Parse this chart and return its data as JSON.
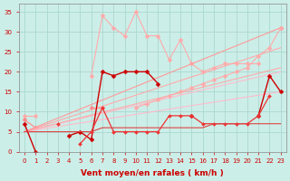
{
  "title": "",
  "xlabel": "Vent moyen/en rafales ( km/h )",
  "ylabel": "",
  "xlim": [
    -0.5,
    23.5
  ],
  "ylim": [
    0,
    37
  ],
  "bg_color": "#cceee8",
  "grid_color": "#aad8d0",
  "series": [
    {
      "x": [
        0,
        1,
        2,
        3,
        4,
        5,
        6,
        7,
        8,
        9,
        10,
        11,
        12,
        13,
        14,
        15,
        16,
        17,
        18,
        19,
        20,
        21,
        22,
        23
      ],
      "y": [
        9,
        9,
        null,
        null,
        null,
        null,
        19,
        34,
        31,
        29,
        35,
        29,
        29,
        23,
        28,
        22,
        20,
        21,
        22,
        22,
        22,
        22,
        null,
        null
      ],
      "color": "#ffaaaa",
      "lw": 0.8,
      "ms": 2.5,
      "marker": "D",
      "ls": "-"
    },
    {
      "x": [
        0,
        1,
        2,
        3,
        4,
        5,
        6,
        7,
        8,
        9,
        10,
        11,
        12,
        13,
        14,
        15,
        16,
        17,
        18,
        19,
        20,
        21,
        22,
        23
      ],
      "y": [
        8,
        6,
        null,
        null,
        null,
        null,
        11,
        11,
        null,
        null,
        null,
        null,
        null,
        null,
        null,
        null,
        null,
        null,
        null,
        null,
        null,
        null,
        null,
        31
      ],
      "color": "#ff8888",
      "lw": 0.8,
      "ms": 2.5,
      "marker": "D",
      "ls": "-"
    },
    {
      "x": [
        0,
        23
      ],
      "y": [
        5,
        20
      ],
      "color": "#ffbbcc",
      "lw": 0.8,
      "ms": 0,
      "marker": "None",
      "ls": "-"
    },
    {
      "x": [
        0,
        23
      ],
      "y": [
        5,
        15
      ],
      "color": "#ffbbcc",
      "lw": 0.8,
      "ms": 0,
      "marker": "None",
      "ls": "-"
    },
    {
      "x": [
        0,
        23
      ],
      "y": [
        5,
        21
      ],
      "color": "#ffaaaa",
      "lw": 0.8,
      "ms": 0,
      "marker": "None",
      "ls": "-"
    },
    {
      "x": [
        0,
        23
      ],
      "y": [
        5,
        26
      ],
      "color": "#ffaaaa",
      "lw": 0.8,
      "ms": 0,
      "marker": "None",
      "ls": "-"
    },
    {
      "x": [
        0,
        23
      ],
      "y": [
        5,
        31
      ],
      "color": "#ff9999",
      "lw": 0.8,
      "ms": 0,
      "marker": "None",
      "ls": "-"
    },
    {
      "x": [
        0,
        1,
        2,
        3,
        4,
        5,
        6,
        7,
        8,
        9,
        10,
        11,
        12,
        13,
        14,
        15,
        16,
        17,
        18,
        19,
        20,
        21,
        22,
        23
      ],
      "y": [
        7,
        0,
        null,
        null,
        4,
        5,
        3,
        20,
        19,
        20,
        20,
        20,
        17,
        null,
        null,
        9,
        null,
        null,
        null,
        null,
        null,
        9,
        19,
        15
      ],
      "color": "#cc0000",
      "lw": 1.0,
      "ms": 2.5,
      "marker": "D",
      "ls": "-"
    },
    {
      "x": [
        0,
        1,
        2,
        3,
        4,
        5,
        6,
        7,
        8,
        9,
        10,
        11,
        12,
        13,
        14,
        15,
        16,
        17,
        18,
        19,
        20,
        21,
        22,
        23
      ],
      "y": [
        null,
        null,
        null,
        7,
        null,
        2,
        5,
        11,
        5,
        5,
        5,
        5,
        5,
        9,
        9,
        9,
        7,
        7,
        7,
        7,
        7,
        9,
        14,
        null
      ],
      "color": "#ee3333",
      "lw": 0.9,
      "ms": 2,
      "marker": "D",
      "ls": "-"
    },
    {
      "x": [
        0,
        1,
        2,
        3,
        4,
        5,
        6,
        7,
        8,
        9,
        10,
        11,
        12,
        13,
        14,
        15,
        16,
        17,
        18,
        19,
        20,
        21,
        22,
        23
      ],
      "y": [
        5,
        5,
        5,
        5,
        5,
        5,
        5,
        6,
        6,
        6,
        6,
        6,
        6,
        6,
        6,
        6,
        6,
        7,
        7,
        7,
        7,
        7,
        7,
        7
      ],
      "color": "#dd4444",
      "lw": 0.8,
      "ms": 0,
      "marker": "None",
      "ls": "-"
    },
    {
      "x": [
        10,
        11,
        12,
        13,
        14,
        15,
        16,
        17,
        18,
        19,
        20,
        21,
        22,
        23
      ],
      "y": [
        11,
        12,
        13,
        14,
        15,
        16,
        17,
        18,
        19,
        20,
        21,
        24,
        26,
        31
      ],
      "color": "#ffaaaa",
      "lw": 0.8,
      "ms": 2.5,
      "marker": "D",
      "ls": "-"
    }
  ],
  "xticks": [
    0,
    1,
    2,
    3,
    4,
    5,
    6,
    7,
    8,
    9,
    10,
    11,
    12,
    13,
    14,
    15,
    16,
    17,
    18,
    19,
    20,
    21,
    22,
    23
  ],
  "yticks": [
    0,
    5,
    10,
    15,
    20,
    25,
    30,
    35
  ],
  "tick_fontsize": 5.0,
  "xlabel_fontsize": 6.5,
  "tick_color": "#cc0000",
  "label_color": "#cc0000"
}
